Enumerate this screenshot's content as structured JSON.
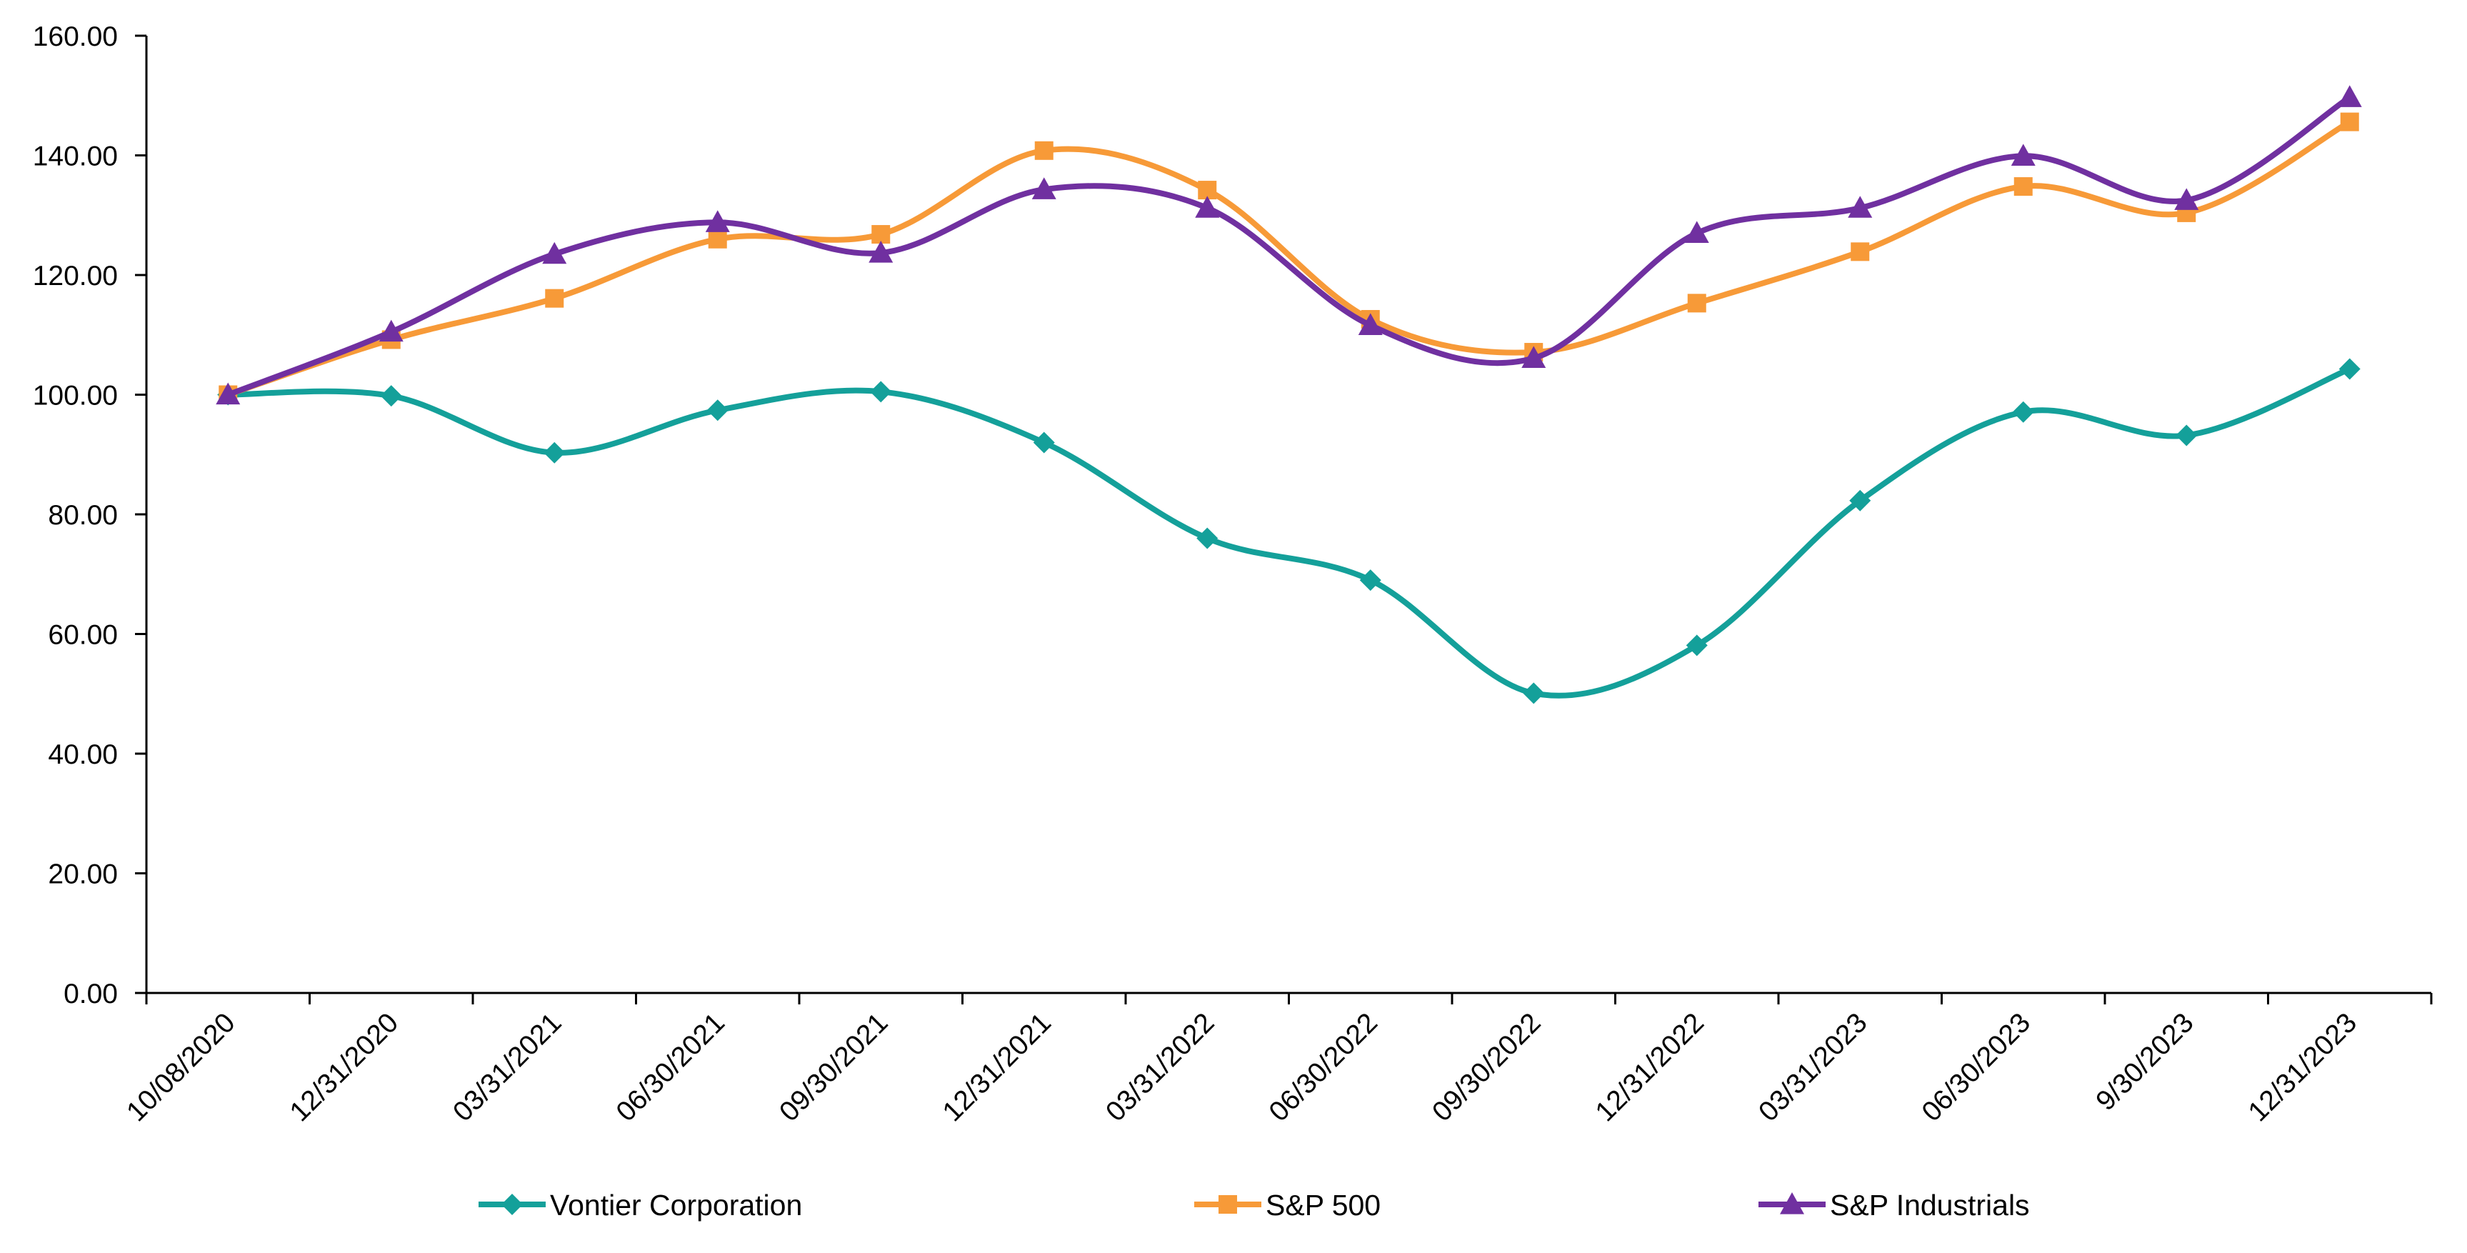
{
  "chart_data": {
    "type": "line",
    "title": "",
    "xlabel": "",
    "ylabel": "",
    "ylim": [
      0,
      160
    ],
    "yticks": [
      0,
      20,
      40,
      60,
      80,
      100,
      120,
      140,
      160
    ],
    "ytick_labels": [
      "0.00",
      "20.00",
      "40.00",
      "60.00",
      "80.00",
      "100.00",
      "120.00",
      "140.00",
      "160.00"
    ],
    "grid": false,
    "smooth": true,
    "legend_position": "bottom",
    "categories": [
      "10/08/2020",
      "12/31/2020",
      "03/31/2021",
      "06/30/2021",
      "09/30/2021",
      "12/31/2021",
      "03/31/2022",
      "06/30/2022",
      "09/30/2022",
      "12/31/2022",
      "03/31/2023",
      "06/30/2023",
      "9/30/2023",
      "12/31/2023"
    ],
    "series": [
      {
        "name": "Vontier Corporation",
        "color": "#14A09A",
        "marker": "diamond",
        "values": [
          100.0,
          99.8,
          90.3,
          97.4,
          100.5,
          92.0,
          76.0,
          69.0,
          50.1,
          58.1,
          82.3,
          97.1,
          93.2,
          104.3
        ]
      },
      {
        "name": "S&P 500",
        "color": "#F79A38",
        "marker": "square",
        "values": [
          100.0,
          109.2,
          116.1,
          126.0,
          126.8,
          140.8,
          134.2,
          112.6,
          107.1,
          115.3,
          123.9,
          134.8,
          130.4,
          145.6
        ]
      },
      {
        "name": "S&P Industrials",
        "color": "#7030A0",
        "marker": "triangle",
        "values": [
          100.0,
          110.5,
          123.5,
          128.8,
          123.7,
          134.3,
          131.2,
          111.6,
          106.1,
          127.0,
          131.2,
          139.9,
          132.5,
          149.7
        ]
      }
    ]
  }
}
